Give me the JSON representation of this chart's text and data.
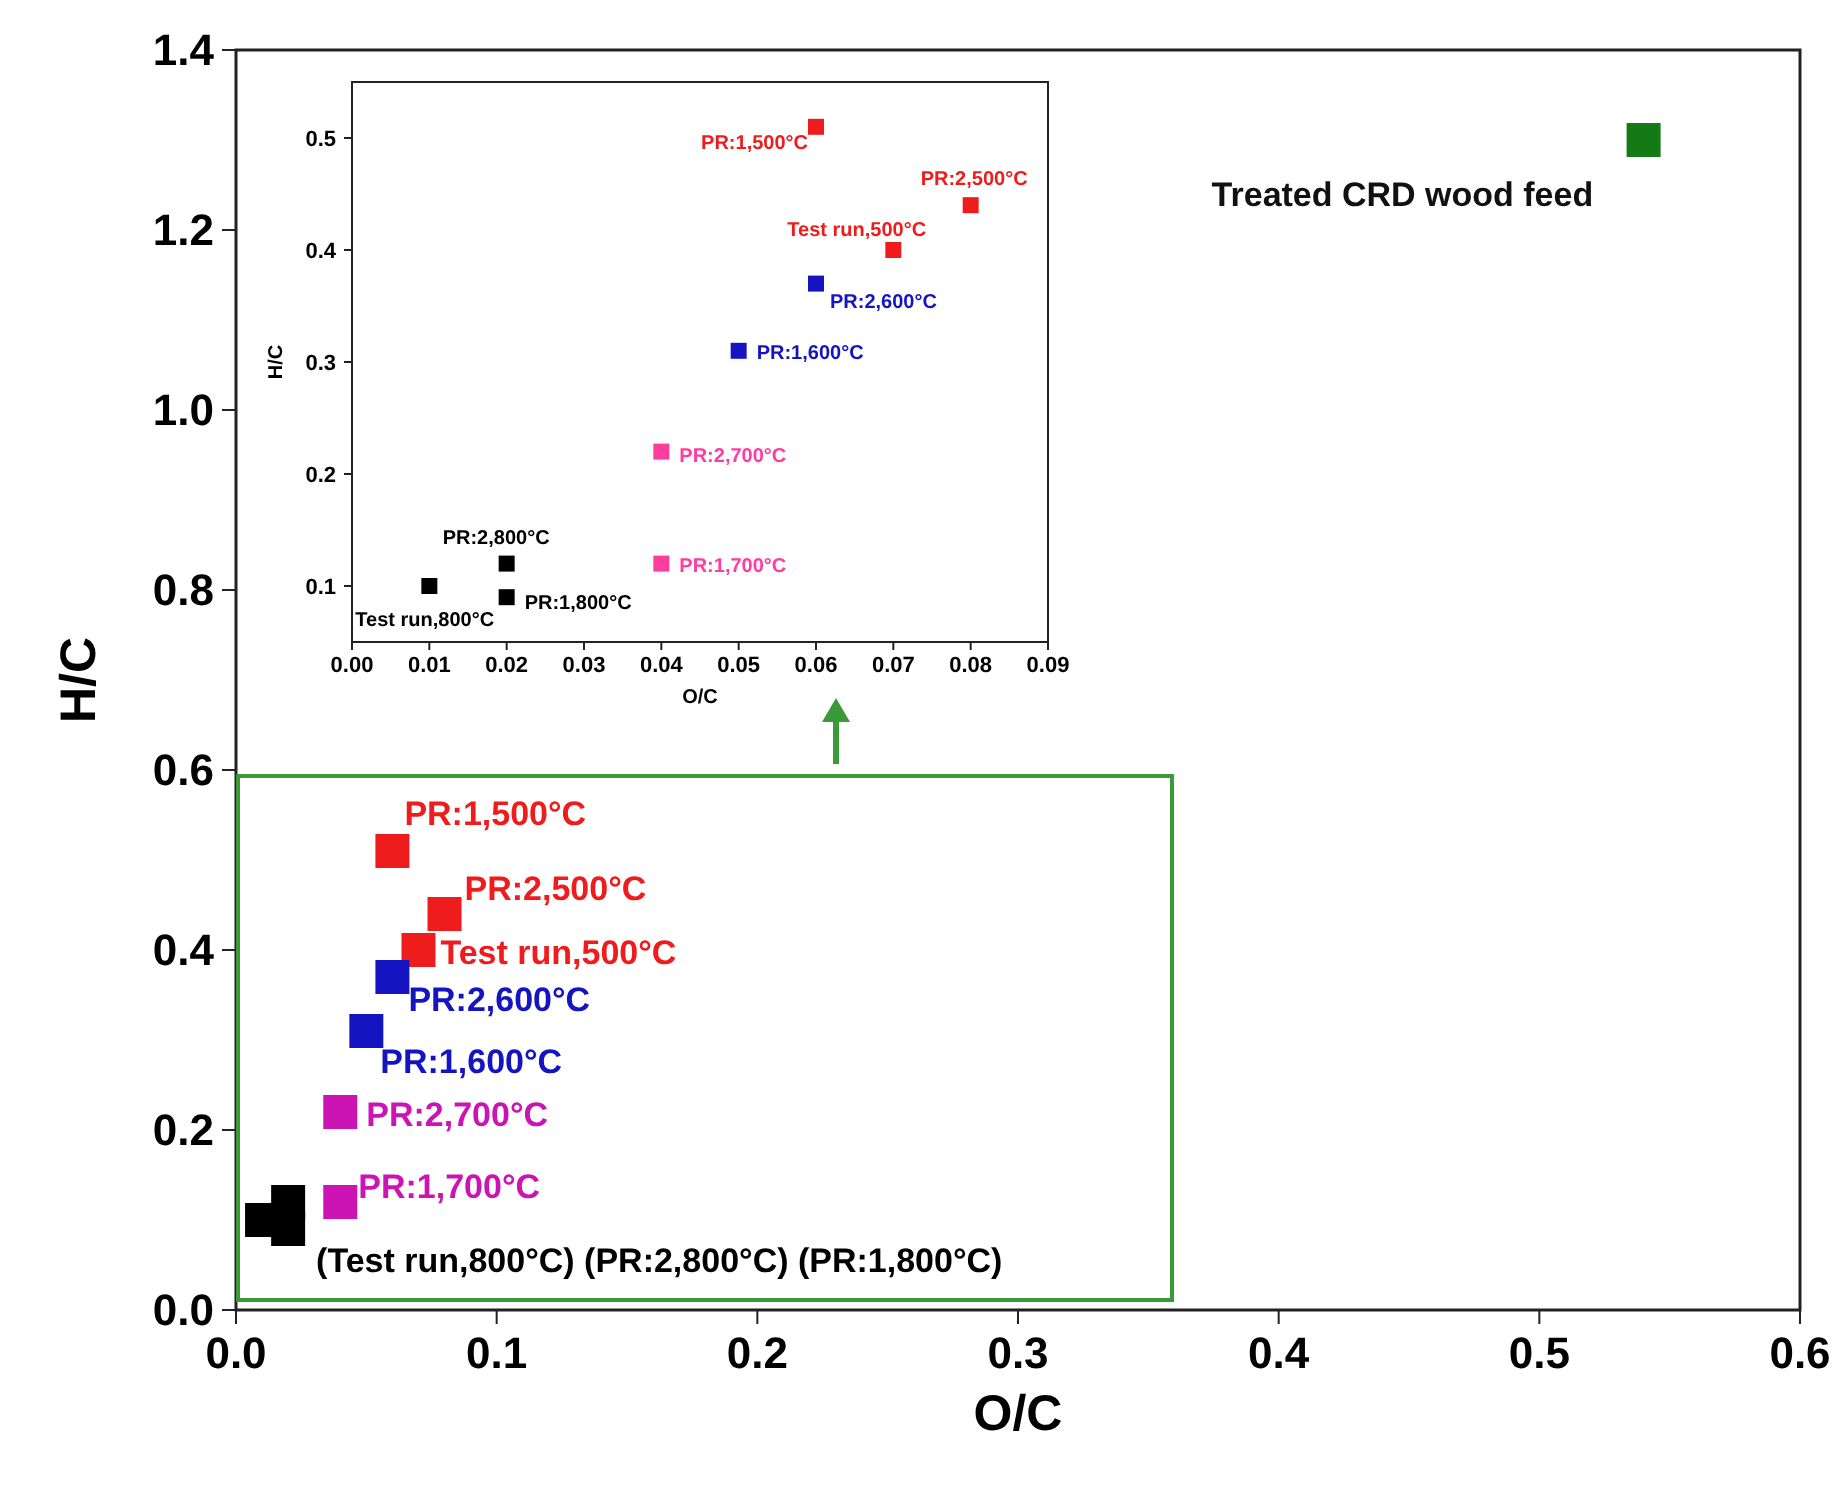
{
  "chart_data": [
    {
      "type": "scatter",
      "xlabel": "O/C",
      "ylabel": "H/C",
      "xlim": [
        0,
        0.6
      ],
      "ylim": [
        0,
        1.4
      ],
      "marker": "square",
      "grid": false,
      "xticks": [
        {
          "value": 0,
          "label": "0.0"
        },
        0.1,
        0.2,
        0.3,
        0.4,
        0.5,
        0.6
      ],
      "yticks": [
        {
          "value": 0,
          "label": "0.0"
        },
        0.2,
        0.4,
        0.6,
        0.8,
        {
          "value": 1,
          "label": "1.0"
        },
        1.2,
        1.4
      ],
      "series": [
        {
          "color": "#ee1c1c",
          "x": [
            0.06,
            0.08,
            0.07
          ],
          "values": [
            0.51,
            0.44,
            0.4
          ]
        },
        {
          "color": "#1414c0",
          "x": [
            0.06,
            0.05
          ],
          "values": [
            0.37,
            0.31
          ]
        },
        {
          "color": "#cc14b4",
          "x": [
            0.04,
            0.04
          ],
          "values": [
            0.22,
            0.12
          ]
        },
        {
          "color": "#000000",
          "x": [
            0.01,
            0.02,
            0.02
          ],
          "values": [
            0.1,
            0.12,
            0.09
          ]
        },
        {
          "color": "#157a15",
          "x": [
            0.54
          ],
          "values": [
            1.3
          ]
        }
      ],
      "annotations": [
        {
          "text": "PR:1,500°C",
          "x": 0.06,
          "y": 0.51
        },
        {
          "text": "PR:2,500°C",
          "x": 0.08,
          "y": 0.44
        },
        {
          "text": "Test run,500°C",
          "x": 0.07,
          "y": 0.4
        },
        {
          "text": "PR:2,600°C",
          "x": 0.06,
          "y": 0.37
        },
        {
          "text": "PR:1,600°C",
          "x": 0.05,
          "y": 0.31
        },
        {
          "text": "PR:2,700°C",
          "x": 0.04,
          "y": 0.22
        },
        {
          "text": "PR:1,700°C",
          "x": 0.04,
          "y": 0.12
        },
        {
          "text": "(Test run,800°C) (PR:2,800°C) (PR:1,800°C)",
          "x": 0.01,
          "y": 0.1
        },
        {
          "text": "Treated CRD wood feed",
          "x": 0.54,
          "y": 1.3
        }
      ]
    },
    {
      "type": "scatter",
      "xlabel": "O/C",
      "ylabel": "H/C",
      "xlim": [
        0,
        0.09
      ],
      "ylim": [
        0.05,
        0.55
      ],
      "marker": "square",
      "grid": false,
      "xticks": [
        {
          "value": 0,
          "label": "0.00"
        },
        0.01,
        0.02,
        0.03,
        0.04,
        0.05,
        0.06,
        0.07,
        0.08,
        0.09
      ],
      "yticks": [
        0.1,
        0.2,
        0.3,
        0.4,
        0.5
      ],
      "series": [
        {
          "color": "#ee1c1c",
          "x": [
            0.06,
            0.08,
            0.07
          ],
          "values": [
            0.51,
            0.44,
            0.4
          ]
        },
        {
          "color": "#1414c0",
          "x": [
            0.06,
            0.05
          ],
          "values": [
            0.37,
            0.31
          ]
        },
        {
          "color": "#ff3ca0",
          "x": [
            0.04,
            0.04
          ],
          "values": [
            0.22,
            0.12
          ]
        },
        {
          "color": "#000000",
          "x": [
            0.01,
            0.02,
            0.02
          ],
          "values": [
            0.1,
            0.12,
            0.09
          ]
        }
      ],
      "annotations": [
        {
          "text": "PR:1,500°C",
          "x": 0.06,
          "y": 0.51
        },
        {
          "text": "PR:2,500°C",
          "x": 0.08,
          "y": 0.44
        },
        {
          "text": "Test run,500°C",
          "x": 0.07,
          "y": 0.4
        },
        {
          "text": "PR:2,600°C",
          "x": 0.06,
          "y": 0.37
        },
        {
          "text": "PR:1,600°C",
          "x": 0.05,
          "y": 0.31
        },
        {
          "text": "PR:2,700°C",
          "x": 0.04,
          "y": 0.22
        },
        {
          "text": "PR:1,700°C",
          "x": 0.04,
          "y": 0.12
        },
        {
          "text": "PR:2,800°C",
          "x": 0.02,
          "y": 0.12
        },
        {
          "text": "Test run,800°C",
          "x": 0.01,
          "y": 0.1
        },
        {
          "text": "PR:1,800°C",
          "x": 0.02,
          "y": 0.09
        }
      ]
    }
  ]
}
